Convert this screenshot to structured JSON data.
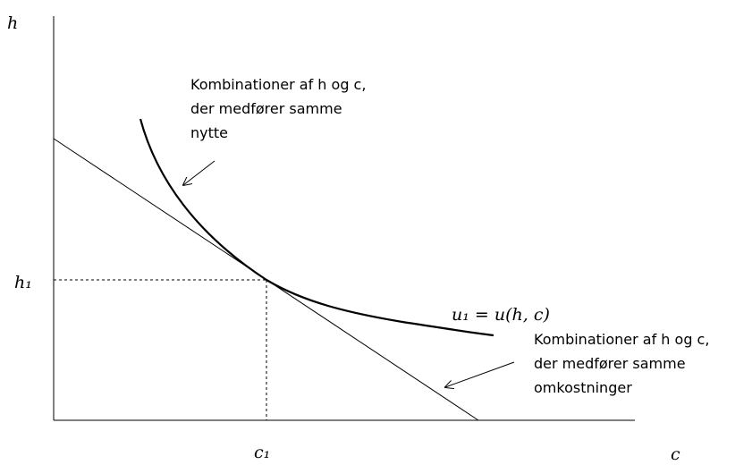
{
  "axes": {
    "y_label": "h",
    "x_label": "c",
    "y_mark": "h₁",
    "x_mark": "c₁"
  },
  "curve_label": "u₁ = u(h, c)",
  "annotations": [
    {
      "lines": [
        "Kombinationer af h og c,",
        "der medfører samme",
        "nytte"
      ]
    },
    {
      "lines": [
        "Kombinationer af h og c,",
        "der medfører samme",
        "omkostninger"
      ]
    }
  ]
}
